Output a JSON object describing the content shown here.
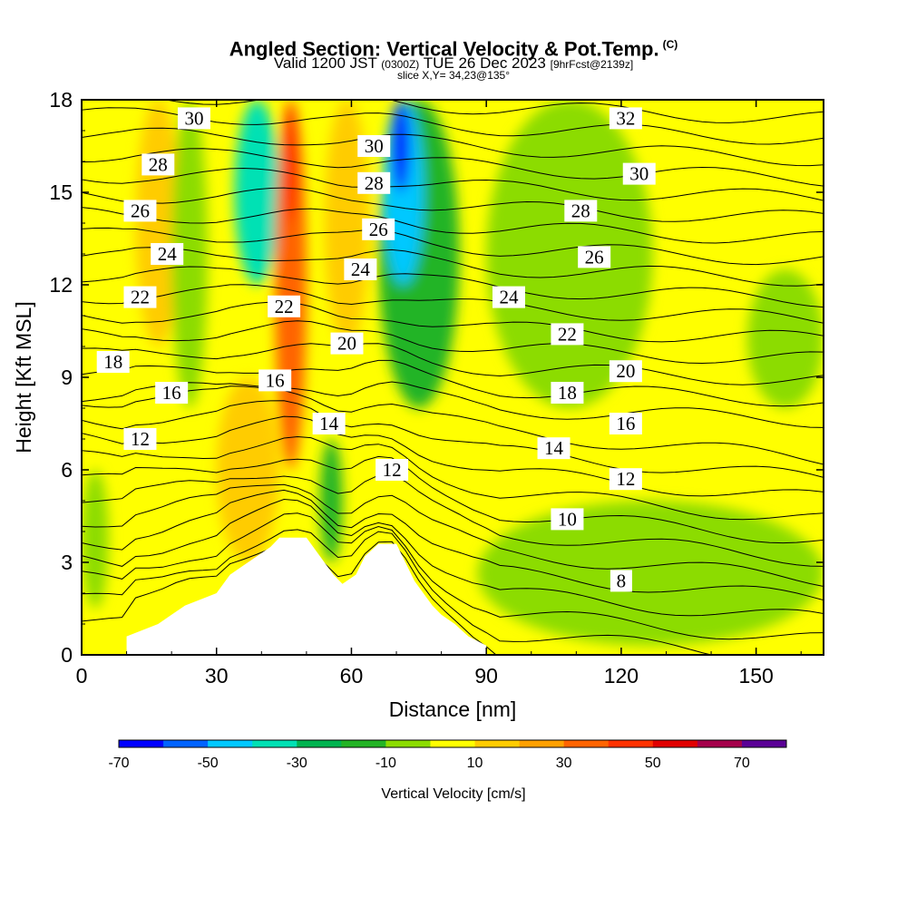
{
  "header": {
    "title": "Angled Section: Vertical Velocity & Pot.Temp.",
    "title_mark": "(C)",
    "subtitle_main": "Valid 1200 JST",
    "subtitle_utc": "(0300Z)",
    "subtitle_date": "TUE 26 Dec 2023",
    "subtitle_fcst": "[9hrFcst@2139z]",
    "slice_text": "slice X,Y= 34,23@135°"
  },
  "chart_data": {
    "type": "heatmap",
    "title": "Angled Section: Vertical Velocity & Pot.Temp.",
    "xlabel": "Distance [nm]",
    "ylabel": "Height [Kft MSL]",
    "xlim": [
      0,
      165
    ],
    "ylim": [
      0,
      18
    ],
    "x_ticks": [
      0,
      30,
      60,
      90,
      120,
      150
    ],
    "x_tick_labels": [
      "0",
      "30",
      "60",
      "90",
      "120",
      "150"
    ],
    "y_ticks": [
      0,
      3,
      6,
      9,
      12,
      15,
      18
    ],
    "y_tick_labels": [
      "0",
      "3",
      "6",
      "9",
      "12",
      "15",
      "18"
    ],
    "colorbar": {
      "label": "Vertical Velocity [cm/s]",
      "range": [
        -70,
        80
      ],
      "step": 10,
      "tick_values": [
        -70,
        -50,
        -30,
        -10,
        10,
        30,
        50,
        70
      ],
      "tick_labels": [
        "-70",
        "-50",
        "-30",
        "-10",
        "10",
        "30",
        "50",
        "70"
      ],
      "colors": [
        "#0000ff",
        "#0063ff",
        "#00c8ff",
        "#00e1b4",
        "#00b450",
        "#23b425",
        "#8cdc00",
        "#ffff00",
        "#ffcc00",
        "#ffa000",
        "#ff6400",
        "#ff3200",
        "#e10000",
        "#a5004b",
        "#5a0096"
      ]
    },
    "velocity_fields": [
      {
        "name": "slope-green",
        "x": [
          0,
          6
        ],
        "y": [
          1.5,
          6
        ],
        "value": -5
      },
      {
        "name": "left-orange-upper",
        "x": [
          12,
          22
        ],
        "y": [
          10,
          18
        ],
        "value": 15
      },
      {
        "name": "left-green-plume",
        "x": [
          20,
          28
        ],
        "y": [
          8,
          18
        ],
        "value": -5
      },
      {
        "name": "left-updraft-lower",
        "x": [
          30,
          44
        ],
        "y": [
          3,
          9
        ],
        "value": 15
      },
      {
        "name": "teal-column-1",
        "x": [
          34,
          44
        ],
        "y": [
          12,
          18
        ],
        "value": -35
      },
      {
        "name": "orange-column",
        "x": [
          43,
          50
        ],
        "y": [
          6,
          18
        ],
        "value": 32
      },
      {
        "name": "red-core",
        "x": [
          45,
          48
        ],
        "y": [
          14,
          18
        ],
        "value": 42
      },
      {
        "name": "lee-downdraft",
        "x": [
          53,
          58
        ],
        "y": [
          3,
          7
        ],
        "value": -15
      },
      {
        "name": "mid-yellow-column",
        "x": [
          54,
          64
        ],
        "y": [
          10,
          18
        ],
        "value": 15
      },
      {
        "name": "right-downdraft",
        "x": [
          66,
          84
        ],
        "y": [
          8,
          18
        ],
        "value": -18
      },
      {
        "name": "right-cyan-core",
        "x": [
          67,
          76
        ],
        "y": [
          12,
          18
        ],
        "value": -45
      },
      {
        "name": "blue-core",
        "x": [
          69,
          73
        ],
        "y": [
          15,
          18
        ],
        "value": -65
      },
      {
        "name": "green-band-90",
        "x": [
          90,
          127
        ],
        "y": [
          8,
          18
        ],
        "value": -5
      },
      {
        "name": "green-low-right",
        "x": [
          88,
          165
        ],
        "y": [
          0.3,
          5
        ],
        "value": -5
      },
      {
        "name": "green-right-upper",
        "x": [
          148,
          165
        ],
        "y": [
          8,
          12.5
        ],
        "value": -5
      }
    ],
    "terrain": {
      "x": [
        10,
        17,
        20,
        23,
        30,
        33,
        36,
        39,
        42,
        44,
        47,
        50,
        53,
        56,
        58,
        61,
        63,
        66,
        68,
        70,
        72,
        74,
        76,
        78,
        80,
        83,
        86,
        90
      ],
      "height": [
        0.6,
        1.0,
        1.3,
        1.6,
        2.0,
        2.6,
        2.9,
        3.2,
        3.5,
        3.8,
        3.8,
        3.8,
        3.2,
        2.6,
        2.3,
        2.6,
        3.2,
        3.6,
        3.6,
        3.6,
        3.0,
        2.4,
        2.0,
        1.6,
        1.3,
        1.0,
        0.6,
        0.3
      ]
    },
    "theta_contours": {
      "units": "C",
      "interval": 1,
      "range": [
        6,
        33
      ],
      "labels": [
        {
          "text": "30",
          "x": 25,
          "y": 17.4
        },
        {
          "text": "28",
          "x": 17,
          "y": 15.9
        },
        {
          "text": "26",
          "x": 13,
          "y": 14.4
        },
        {
          "text": "24",
          "x": 19,
          "y": 13.0
        },
        {
          "text": "22",
          "x": 13,
          "y": 11.6
        },
        {
          "text": "18",
          "x": 7,
          "y": 9.5
        },
        {
          "text": "16",
          "x": 20,
          "y": 8.5
        },
        {
          "text": "12",
          "x": 13,
          "y": 7.0
        },
        {
          "text": "22",
          "x": 45,
          "y": 11.3
        },
        {
          "text": "16",
          "x": 43,
          "y": 8.9
        },
        {
          "text": "14",
          "x": 55,
          "y": 7.5
        },
        {
          "text": "20",
          "x": 59,
          "y": 10.1
        },
        {
          "text": "24",
          "x": 62,
          "y": 12.5
        },
        {
          "text": "26",
          "x": 66,
          "y": 13.8
        },
        {
          "text": "28",
          "x": 65,
          "y": 15.3
        },
        {
          "text": "30",
          "x": 65,
          "y": 16.5
        },
        {
          "text": "12",
          "x": 69,
          "y": 6.0
        },
        {
          "text": "24",
          "x": 95,
          "y": 11.6
        },
        {
          "text": "22",
          "x": 108,
          "y": 10.4
        },
        {
          "text": "18",
          "x": 108,
          "y": 8.5
        },
        {
          "text": "14",
          "x": 105,
          "y": 6.7
        },
        {
          "text": "10",
          "x": 108,
          "y": 4.4
        },
        {
          "text": "28",
          "x": 111,
          "y": 14.4
        },
        {
          "text": "26",
          "x": 114,
          "y": 12.9
        },
        {
          "text": "20",
          "x": 121,
          "y": 9.2
        },
        {
          "text": "16",
          "x": 121,
          "y": 7.5
        },
        {
          "text": "12",
          "x": 121,
          "y": 5.7
        },
        {
          "text": "8",
          "x": 120,
          "y": 2.4
        },
        {
          "text": "32",
          "x": 121,
          "y": 17.4
        },
        {
          "text": "30",
          "x": 124,
          "y": 15.6
        }
      ]
    }
  }
}
